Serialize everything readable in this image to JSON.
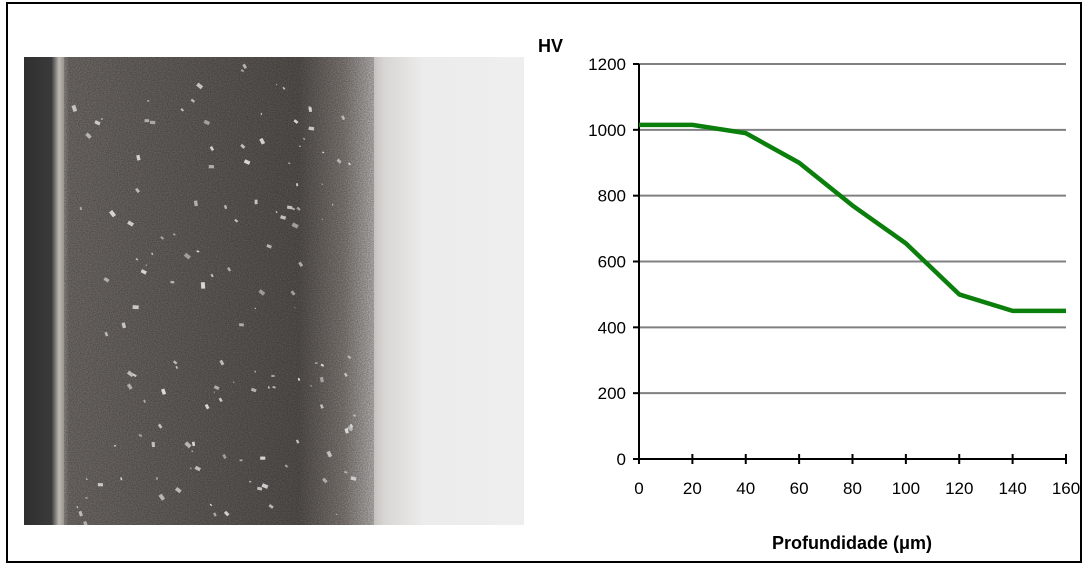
{
  "micrograph": {
    "colors": {
      "mount": "#3b3b3b",
      "edge": "#c8c4bf",
      "layer": "#5e5a57",
      "substrate": "#ebebeb",
      "particles": "#d9d9d9"
    }
  },
  "chart_data": {
    "type": "line",
    "ylabel": "HV",
    "xlabel": "Profundidade (μm)",
    "x": [
      0,
      20,
      40,
      60,
      80,
      100,
      120,
      140,
      160
    ],
    "series": [
      {
        "values": [
          1015,
          1015,
          990,
          900,
          770,
          655,
          500,
          450,
          450
        ],
        "color": "#0b7f0b"
      }
    ],
    "xlim": [
      0,
      160
    ],
    "ylim": [
      0,
      1200
    ],
    "xticks": [
      "0",
      "20",
      "40",
      "60",
      "80",
      "100",
      "120",
      "140",
      "160"
    ],
    "yticks": [
      "0",
      "200",
      "400",
      "600",
      "800",
      "1000",
      "1200"
    ],
    "grid": "horizontal",
    "gridColor": "#808080"
  }
}
